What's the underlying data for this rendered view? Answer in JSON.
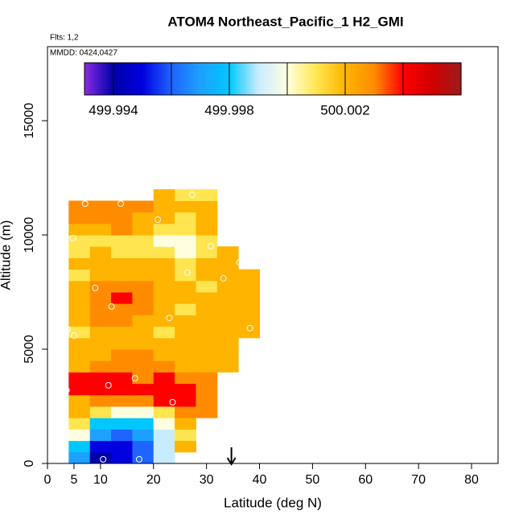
{
  "chart_data": {
    "type": "heatmap",
    "title": "ATOM4 Northeast_Pacific_1 H2_GMI",
    "subtitle": "Flts: 1,2",
    "annotation": "MMDD: 0424,0427",
    "x_label": "Latitude (deg N)",
    "y_label": "Altitude (m)",
    "xlim": [
      0,
      85
    ],
    "xticks": [
      0,
      5,
      10,
      20,
      30,
      40,
      50,
      60,
      70,
      80
    ],
    "ylim": [
      0,
      18240
    ],
    "yticks": [
      0,
      5000,
      10000,
      15000
    ],
    "x_edges": [
      4,
      8,
      12,
      16,
      20,
      24,
      28,
      32,
      36,
      40
    ],
    "y_edges": [
      0,
      500,
      1000,
      1500,
      2000,
      2500,
      3000,
      3500,
      4000,
      4500,
      5000,
      5500,
      6000,
      6500,
      7000,
      7500,
      8000,
      8500,
      9000,
      9500,
      10000,
      10500,
      11000,
      11500,
      12000
    ],
    "values": [
      [
        499.997,
        499.994,
        499.995,
        499.996,
        499.999,
        null,
        null,
        null,
        null
      ],
      [
        499.998,
        499.995,
        499.995,
        499.996,
        499.999,
        500.002,
        null,
        null,
        null
      ],
      [
        500.0,
        499.997,
        499.996,
        499.997,
        499.999,
        500.001,
        null,
        null,
        null
      ],
      [
        500.001,
        499.998,
        499.998,
        499.998,
        500.0,
        500.002,
        null,
        null,
        null
      ],
      [
        500.002,
        500.001,
        500.0,
        500.0,
        500.001,
        500.003,
        500.003,
        null,
        null
      ],
      [
        500.002,
        500.003,
        500.003,
        500.003,
        500.004,
        500.004,
        500.003,
        null,
        null
      ],
      [
        500.004,
        500.004,
        500.004,
        500.004,
        500.004,
        500.004,
        500.003,
        null,
        null
      ],
      [
        500.004,
        500.004,
        500.004,
        500.003,
        500.004,
        500.003,
        500.003,
        null,
        null
      ],
      [
        500.002,
        500.003,
        500.003,
        500.003,
        500.003,
        500.002,
        500.002,
        500.002,
        null
      ],
      [
        500.002,
        500.002,
        500.003,
        500.003,
        500.002,
        500.002,
        500.002,
        500.002,
        null
      ],
      [
        500.002,
        500.002,
        500.002,
        500.002,
        500.002,
        500.002,
        500.002,
        500.002,
        null
      ],
      [
        500.001,
        500.002,
        500.002,
        500.002,
        500.001,
        500.002,
        500.002,
        500.002,
        500.002
      ],
      [
        500.002,
        500.003,
        500.003,
        500.002,
        500.002,
        500.002,
        500.002,
        500.002,
        500.002
      ],
      [
        500.002,
        500.003,
        500.003,
        500.003,
        500.002,
        500.001,
        500.002,
        500.002,
        500.002
      ],
      [
        500.002,
        500.003,
        500.004,
        500.003,
        500.002,
        500.002,
        500.002,
        500.002,
        500.002
      ],
      [
        500.002,
        500.003,
        500.003,
        500.003,
        500.002,
        500.002,
        500.001,
        500.002,
        500.002
      ],
      [
        500.001,
        500.002,
        500.002,
        500.002,
        500.002,
        500.001,
        500.002,
        500.002,
        500.002
      ],
      [
        500.002,
        500.002,
        500.002,
        500.002,
        500.002,
        500.001,
        500.002,
        500.002,
        null
      ],
      [
        500.001,
        500.002,
        500.001,
        500.001,
        500.001,
        500.0,
        500.001,
        500.002,
        null
      ],
      [
        500.001,
        500.001,
        500.001,
        500.001,
        500.0,
        500.0,
        500.001,
        null,
        null
      ],
      [
        500.002,
        500.002,
        500.003,
        500.002,
        500.001,
        500.001,
        500.002,
        null,
        null
      ],
      [
        500.003,
        500.003,
        500.003,
        500.002,
        500.002,
        500.001,
        500.002,
        null,
        null
      ],
      [
        500.003,
        500.003,
        500.003,
        500.003,
        500.002,
        500.002,
        500.002,
        null,
        null
      ],
      [
        null,
        null,
        null,
        null,
        500.002,
        500.001,
        500.001,
        null,
        null
      ]
    ],
    "points": {
      "x": [
        3.8,
        5,
        4.8,
        7.1,
        13.8,
        20.8,
        27.3,
        23,
        30.8,
        26.4,
        36.2,
        33.2,
        9,
        12.1,
        23,
        38.2,
        3.6,
        11.5,
        16.5,
        23.6,
        10.5,
        17.3
      ],
      "y": [
        5880,
        5600,
        9860,
        11370,
        11370,
        10670,
        11760,
        9610,
        9510,
        8350,
        8800,
        8100,
        7680,
        6870,
        6370,
        5920,
        3200,
        3420,
        3730,
        2680,
        180,
        180
      ]
    },
    "marker_x": 34.7,
    "colorbar": {
      "lim": [
        499.993,
        500.006
      ],
      "ticks": [
        499.994,
        499.998,
        500.002
      ],
      "breaks": [
        499.994,
        499.996,
        499.998,
        500.0,
        500.002,
        500.004
      ],
      "colors": [
        "#8a2be2",
        "#0000aa",
        "#0000e0",
        "#1e64ff",
        "#1ea0ff",
        "#00c8ff",
        "#c8ecff",
        "#ffffe0",
        "#ffe650",
        "#ffb400",
        "#ff8c00",
        "#ff0000",
        "#d20000",
        "#9b1c1c"
      ]
    }
  }
}
